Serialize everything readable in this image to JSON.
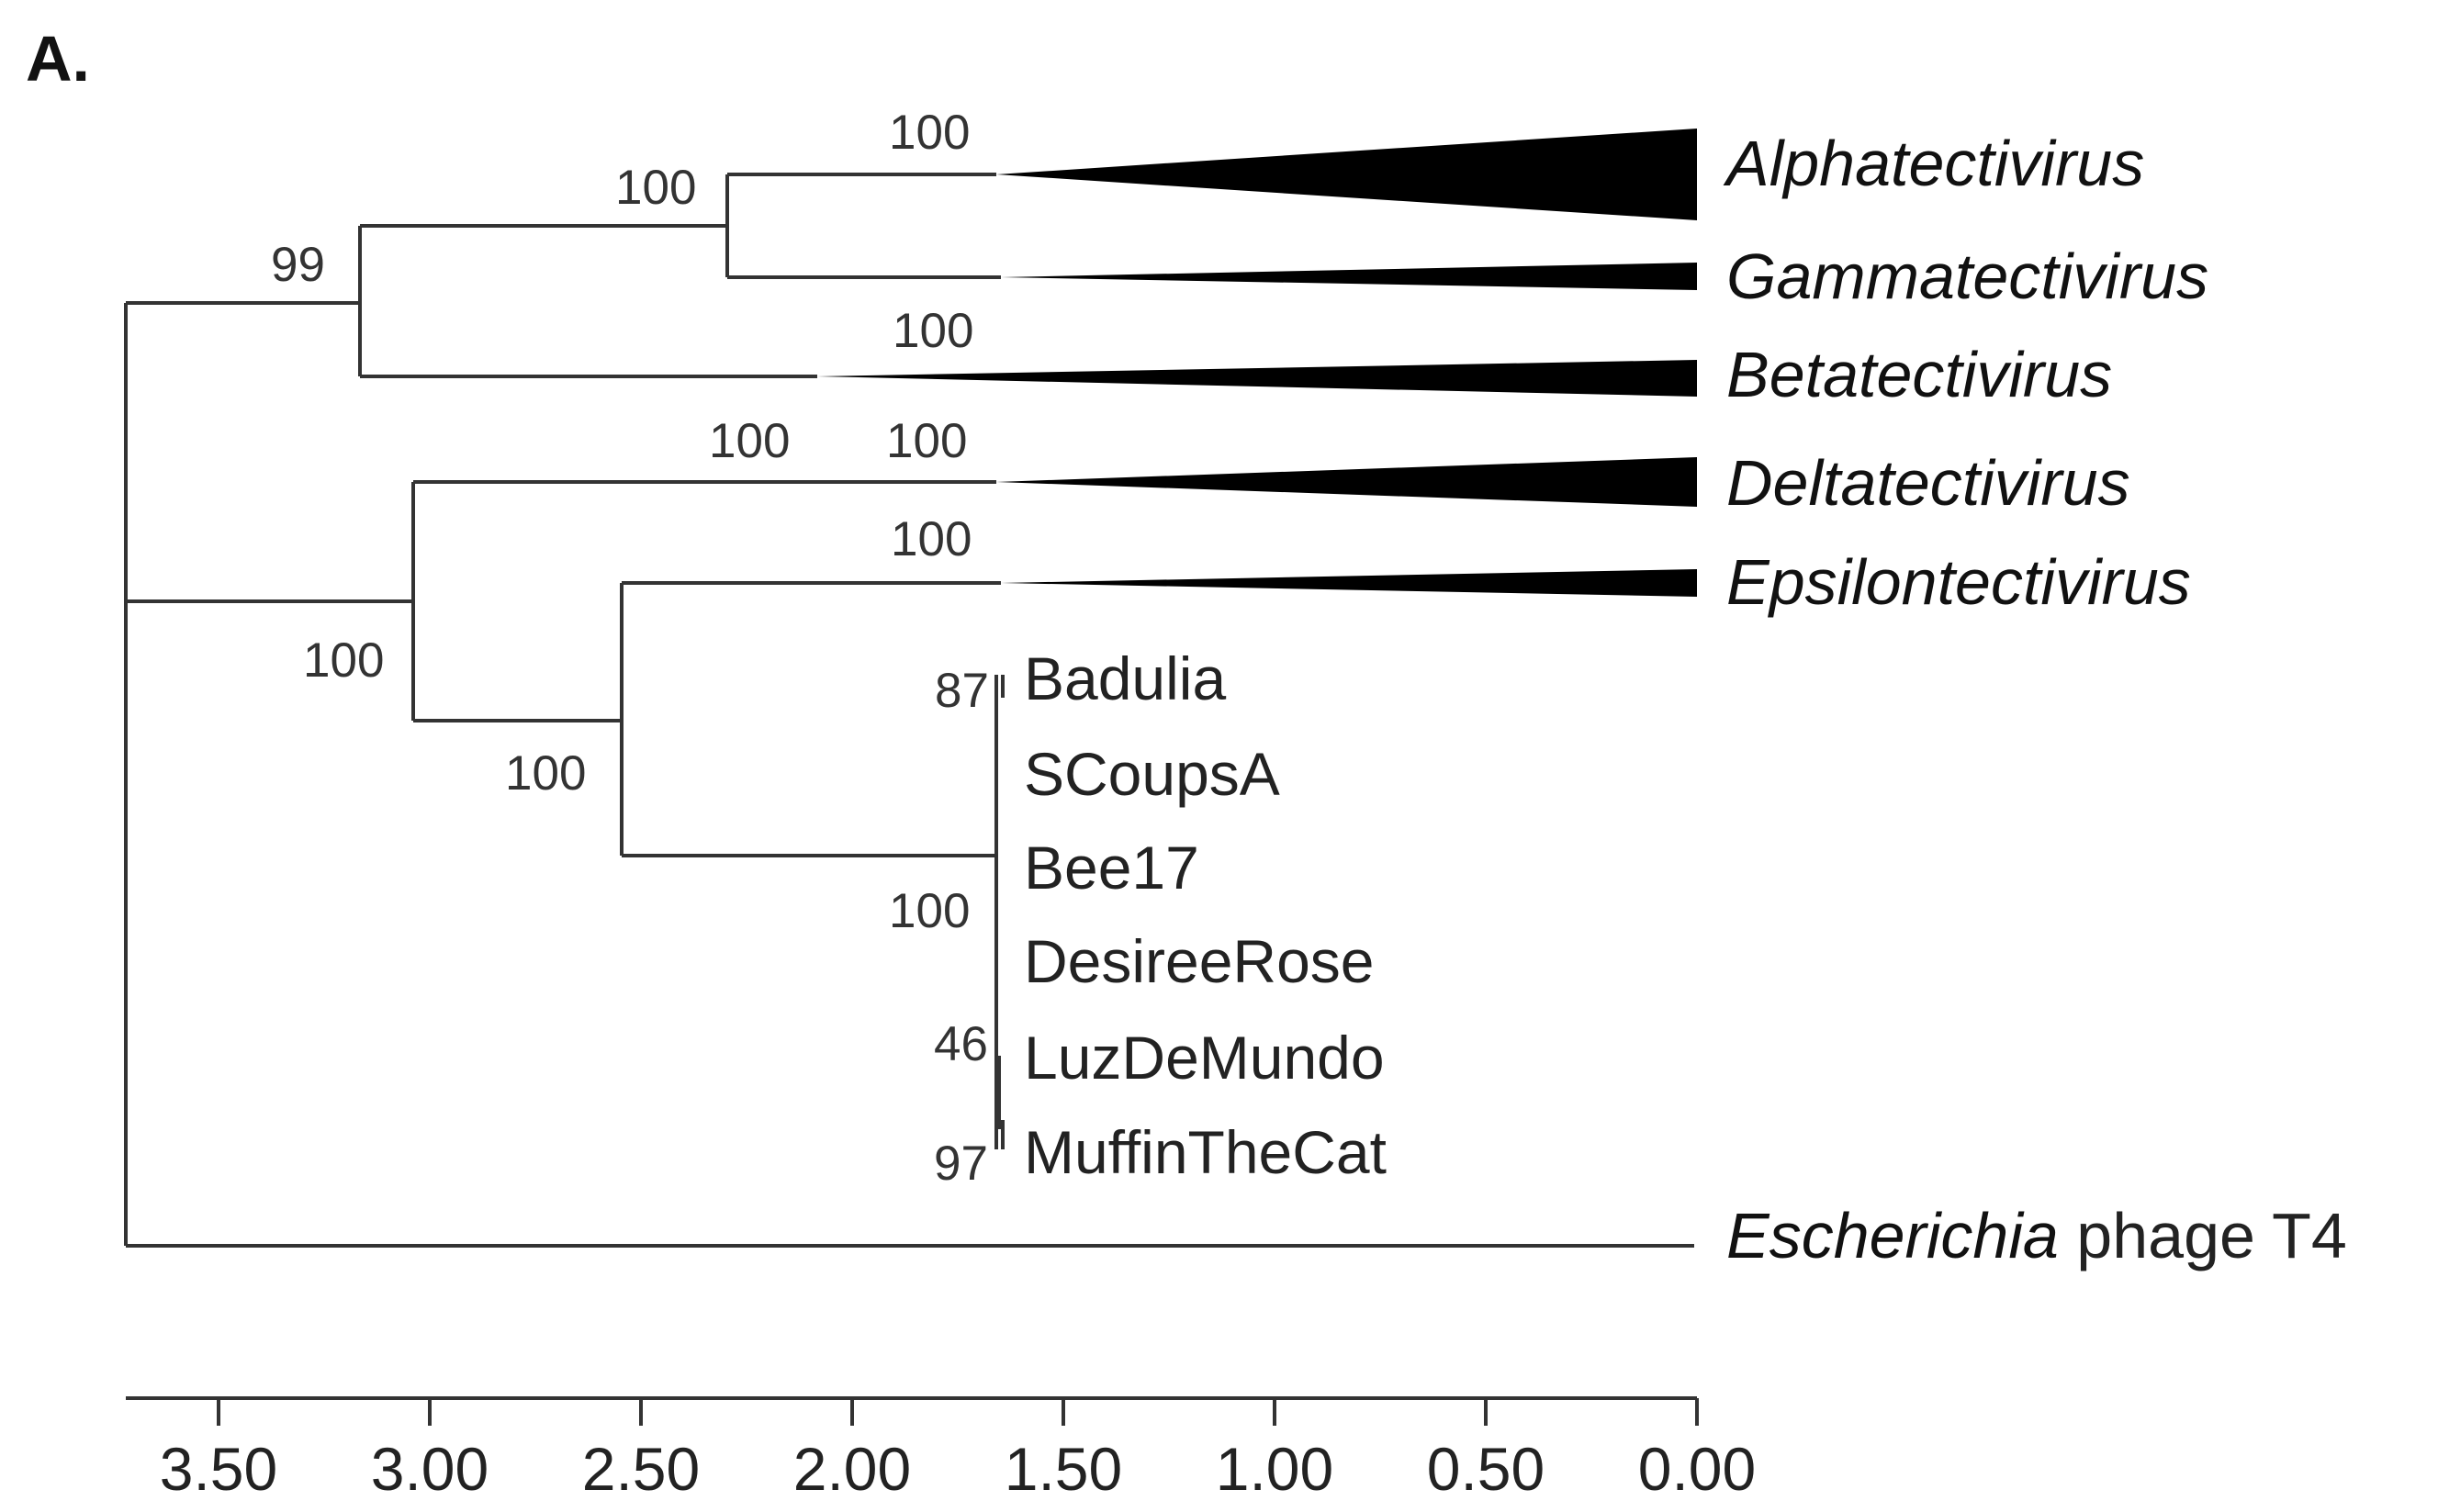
{
  "panel_label": "A.",
  "axis": {
    "ticks": [
      {
        "value": 3.5,
        "label": "3.50"
      },
      {
        "value": 3.0,
        "label": "3.00"
      },
      {
        "value": 2.5,
        "label": "2.50"
      },
      {
        "value": 2.0,
        "label": "2.00"
      },
      {
        "value": 1.5,
        "label": "1.50"
      },
      {
        "value": 1.0,
        "label": "1.00"
      },
      {
        "value": 0.5,
        "label": "0.50"
      },
      {
        "value": 0.0,
        "label": "0.00"
      }
    ]
  },
  "collapsed_clades": [
    {
      "name": "Alphatectivirus"
    },
    {
      "name": "Gammatectivirus"
    },
    {
      "name": "Betatectivirus"
    },
    {
      "name": "Deltatectivirus"
    },
    {
      "name": "Epsilontectivirus"
    }
  ],
  "leaves": [
    "Badulia",
    "SCoupsA",
    "Bee17",
    "DesireeRose",
    "LuzDeMundo",
    "MuffinTheCat"
  ],
  "outgroup": {
    "italic": "Escherichia",
    "rest": " phage T4"
  },
  "bootstrap": {
    "root_upper": "99",
    "alpha_gamma": "100",
    "alpha_branch": "100",
    "beta_branch": "100",
    "delta_epsilon_node": "100",
    "delta_branch_a": "100",
    "delta_branch_b": "100",
    "epsilon_branch": "100",
    "epsilon_node": "100",
    "badulia": "87",
    "group_node": "100",
    "luzdemundo": "46",
    "muffinthecat": "97"
  },
  "colors": {
    "branch": "#333333",
    "wedge": "#000000"
  }
}
